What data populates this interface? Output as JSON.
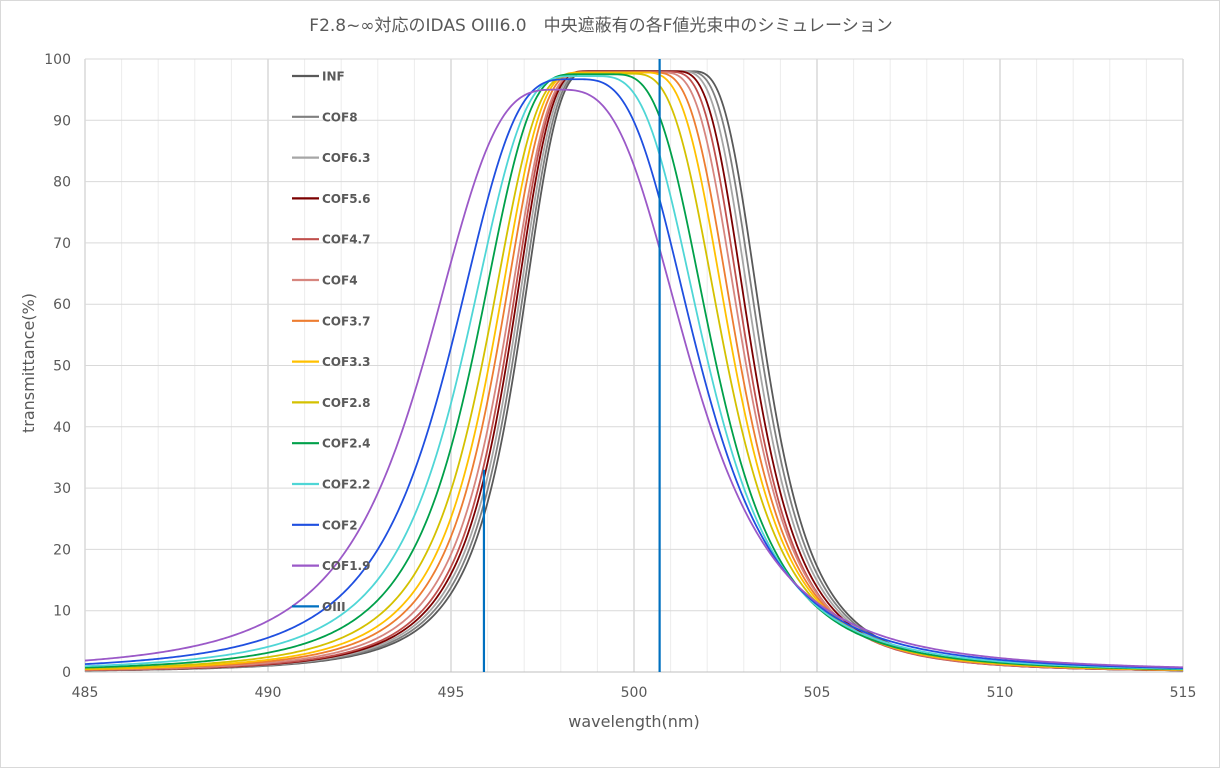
{
  "chart_data": {
    "type": "line",
    "title": "F2.8~∞対応のIDAS OIII6.0　中央遮蔽有の各F値光束中のシミュレーション",
    "xlabel": "wavelength(nm)",
    "ylabel": "transmittance(%)",
    "xlim": [
      485,
      515
    ],
    "ylim": [
      0,
      100
    ],
    "x_ticks": [
      "485",
      "490",
      "495",
      "500",
      "505",
      "510",
      "515"
    ],
    "y_ticks": [
      "0",
      "10",
      "20",
      "30",
      "40",
      "50",
      "60",
      "70",
      "80",
      "90",
      "100"
    ],
    "grid": true,
    "legend_position": "top-left",
    "series": [
      {
        "name": "INF",
        "color": "#595959",
        "center": 500.2,
        "peak": 98.0,
        "half_width": 3.48,
        "flat_half": 1.35
      },
      {
        "name": "COF8",
        "color": "#7f7f7f",
        "center": 500.1,
        "peak": 98.0,
        "half_width": 3.46,
        "flat_half": 1.3
      },
      {
        "name": "COF6.3",
        "color": "#a6a6a6",
        "center": 500.0,
        "peak": 98.0,
        "half_width": 3.44,
        "flat_half": 1.25
      },
      {
        "name": "COF5.6",
        "color": "#7b0000",
        "center": 499.9,
        "peak": 98.0,
        "half_width": 3.42,
        "flat_half": 1.2
      },
      {
        "name": "COF4.7",
        "color": "#c0504d",
        "center": 499.8,
        "peak": 97.9,
        "half_width": 3.4,
        "flat_half": 1.15
      },
      {
        "name": "COF4",
        "color": "#d7867f",
        "center": 499.7,
        "peak": 97.8,
        "half_width": 3.4,
        "flat_half": 1.05
      },
      {
        "name": "COF3.7",
        "color": "#ed7d31",
        "center": 499.55,
        "peak": 97.8,
        "half_width": 3.4,
        "flat_half": 0.95
      },
      {
        "name": "COF3.3",
        "color": "#ffc000",
        "center": 499.4,
        "peak": 97.8,
        "half_width": 3.4,
        "flat_half": 0.85
      },
      {
        "name": "COF2.8",
        "color": "#d4c100",
        "center": 499.2,
        "peak": 97.6,
        "half_width": 3.4,
        "flat_half": 0.7
      },
      {
        "name": "COF2.4",
        "color": "#00a04a",
        "center": 498.9,
        "peak": 97.5,
        "half_width": 3.4,
        "flat_half": 0.5
      },
      {
        "name": "COF2.2",
        "color": "#4fd6d6",
        "center": 498.65,
        "peak": 97.2,
        "half_width": 3.45,
        "flat_half": 0.3
      },
      {
        "name": "COF2",
        "color": "#1f4fe0",
        "center": 498.35,
        "peak": 96.7,
        "half_width": 3.55,
        "flat_half": 0.1
      },
      {
        "name": "COF1.9",
        "color": "#9b59c8",
        "center": 497.9,
        "peak": 95.0,
        "half_width": 3.8,
        "flat_half": 0.0
      },
      {
        "name": "OIII",
        "color": "#0070c0",
        "lines": [
          {
            "x": 495.9,
            "y": 33
          },
          {
            "x": 500.7,
            "y": 100
          }
        ]
      }
    ]
  }
}
